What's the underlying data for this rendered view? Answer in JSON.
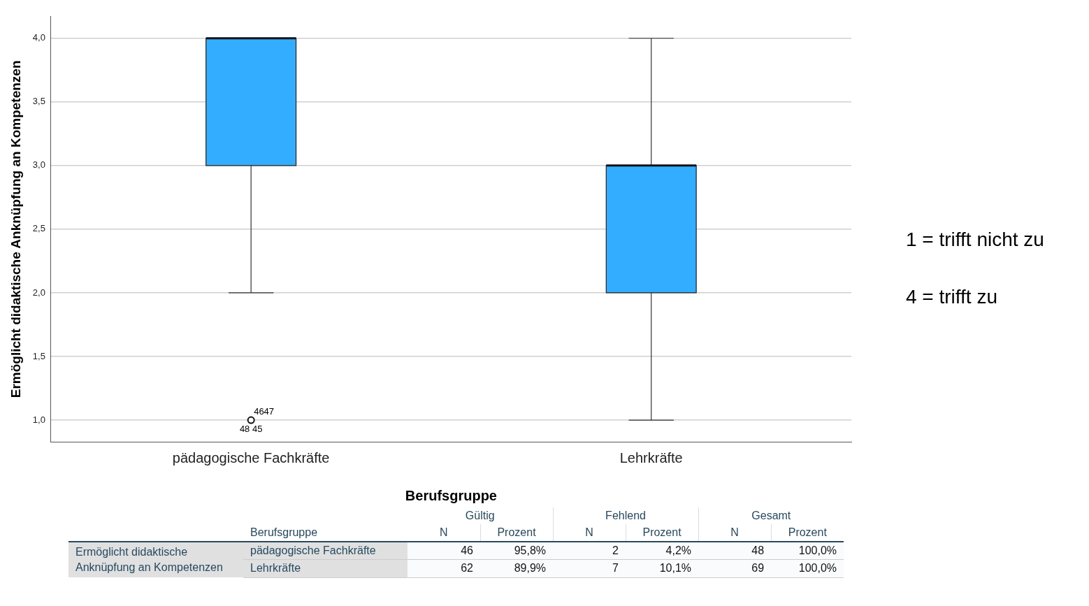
{
  "chart_data": [
    {
      "type": "box",
      "xlabel": "Berufsgruppe",
      "ylabel": "Ermöglicht didaktische Anknüpfung an Kompetenzen",
      "categories": [
        "pädagogische Fachkräfte",
        "Lehrkräfte"
      ],
      "boxes": [
        {
          "low": 2,
          "q1": 3,
          "median": 4,
          "q3": 4,
          "high": 4,
          "outliers": [
            1
          ]
        },
        {
          "low": 1,
          "q1": 2,
          "median": 3,
          "q3": 3,
          "high": 4
        }
      ],
      "color": "#33adff",
      "ylim": [
        0.83,
        4.17
      ],
      "yticks": [
        {
          "value": 1,
          "label": "1,0"
        },
        {
          "value": 1.5,
          "label": "1,5"
        },
        {
          "value": 2,
          "label": "2,0"
        },
        {
          "value": 2.5,
          "label": "2,5"
        },
        {
          "value": 3,
          "label": "3,0"
        },
        {
          "value": 3.5,
          "label": "3,5"
        },
        {
          "value": 4,
          "label": "4,0"
        }
      ],
      "grid": "y",
      "legend": false,
      "annotations": [
        "4647",
        "48 45",
        "1 = trifft nicht zu",
        "4 = trifft zu"
      ]
    },
    {
      "type": "other",
      "annotations": [
        "Gültig",
        "Fehlend",
        "Gesamt",
        "Berufsgruppe",
        "N",
        "Prozent",
        "N",
        "Prozent",
        "N",
        "Prozent",
        "Ermöglicht didaktische Anknüpfung an Kompetenzen",
        "pädagogische Fachkräfte",
        "46",
        "95,8%",
        "2",
        "4,2%",
        "48",
        "100,0%",
        "Lehrkräfte",
        "62",
        "89,9%",
        "7",
        "10,1%",
        "69",
        "100,0%"
      ]
    }
  ]
}
